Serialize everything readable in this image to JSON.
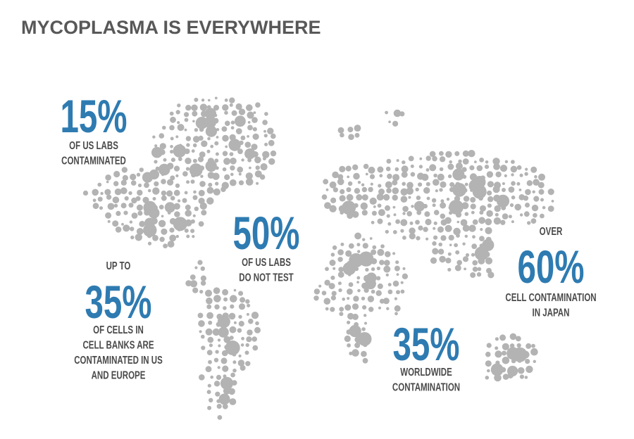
{
  "title": "MYCOPLASMA IS EVERYWHERE",
  "stats": [
    {
      "value": "15%",
      "lines": [
        "OF US LABS",
        "CONTAMINATED"
      ]
    },
    {
      "value": "50%",
      "lines": [
        "OF US LABS",
        "DO NOT TEST"
      ]
    },
    {
      "prefix": "UP TO",
      "value": "35%",
      "lines": [
        "OF CELLS IN",
        "CELL BANKS ARE",
        "CONTAMINATED IN US",
        "AND EUROPE"
      ]
    },
    {
      "value": "35%",
      "lines": [
        "WORLDWIDE",
        "CONTAMINATION"
      ]
    },
    {
      "prefix": "OVER",
      "value": "60%",
      "lines": [
        "CELL CONTAMINATION",
        "IN JAPAN"
      ]
    }
  ]
}
